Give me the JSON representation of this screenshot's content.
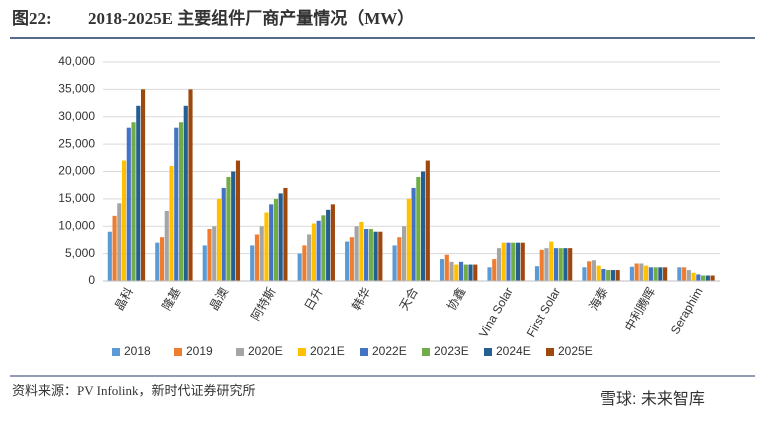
{
  "chart_data": {
    "type": "bar",
    "figure_label": "图22:",
    "title": "2018-2025E 主要组件厂商产量情况（MW）",
    "source": "资料来源：PV Infolink，新时代证券研究所",
    "watermark": "雪球: 未来智库",
    "categories": [
      "晶科",
      "隆基",
      "晶澳",
      "阿特斯",
      "日升",
      "韩华",
      "天合",
      "协鑫",
      "Vina Solar",
      "First Solar",
      "海泰",
      "中利腾晖",
      "Seraphim"
    ],
    "series": [
      {
        "name": "2018",
        "color": "#5b9bd5",
        "values": [
          9000,
          7000,
          6500,
          6500,
          5000,
          7200,
          6500,
          4000,
          2500,
          2700,
          2500,
          2600,
          2500
        ]
      },
      {
        "name": "2019",
        "color": "#ed7d31",
        "values": [
          11900,
          8000,
          9500,
          8500,
          6500,
          8000,
          8000,
          4800,
          4000,
          5700,
          3600,
          3200,
          2500
        ]
      },
      {
        "name": "2020E",
        "color": "#a5a5a5",
        "values": [
          14200,
          12800,
          10000,
          10000,
          8500,
          10000,
          10000,
          3500,
          6000,
          6000,
          3800,
          3200,
          2000
        ]
      },
      {
        "name": "2021E",
        "color": "#ffc000",
        "values": [
          22000,
          21000,
          15000,
          12500,
          10500,
          10800,
          15000,
          3000,
          7000,
          7200,
          2800,
          2800,
          1500
        ]
      },
      {
        "name": "2022E",
        "color": "#4472c4",
        "values": [
          28000,
          28000,
          17000,
          14000,
          11000,
          9500,
          17000,
          3500,
          7000,
          6000,
          2200,
          2500,
          1200
        ]
      },
      {
        "name": "2023E",
        "color": "#70ad47",
        "values": [
          29000,
          29000,
          19000,
          15000,
          12000,
          9500,
          19000,
          3000,
          7000,
          6000,
          2000,
          2500,
          1000
        ]
      },
      {
        "name": "2024E",
        "color": "#255e91",
        "values": [
          32000,
          32000,
          20000,
          16000,
          13000,
          9000,
          20000,
          3000,
          7000,
          6000,
          2000,
          2500,
          1000
        ]
      },
      {
        "name": "2025E",
        "color": "#9e480e",
        "values": [
          35000,
          35000,
          22000,
          17000,
          14000,
          9000,
          22000,
          3000,
          7000,
          6000,
          2000,
          2500,
          1000
        ]
      }
    ],
    "ylim": [
      0,
      40000
    ],
    "yticks": [
      0,
      {
        "value": 5000,
        "label": "5,000"
      },
      {
        "value": 10000,
        "label": "10,000"
      },
      {
        "value": 15000,
        "label": "15,000"
      },
      {
        "value": 20000,
        "label": "20,000"
      },
      {
        "value": 25000,
        "label": "25,000"
      },
      {
        "value": 30000,
        "label": "30,000"
      },
      {
        "value": 35000,
        "label": "35,000"
      },
      {
        "value": 40000,
        "label": "40,000"
      }
    ],
    "grid": true,
    "legend": "bottom"
  }
}
